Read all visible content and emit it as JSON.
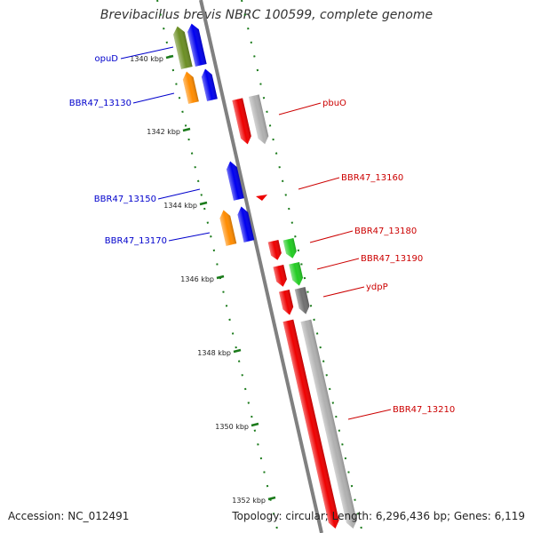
{
  "title": "Brevibacillus brevis NBRC 100599, complete genome",
  "footer": {
    "accession": "Accession: NC_012491",
    "stats": "Topology: circular; Length: 6,296,436 bp; Genes: 6,119"
  },
  "colors": {
    "backbone": "#808080",
    "tick": "#1a7a1a",
    "left_label": "#0000cc",
    "right_label": "#cc0000",
    "blue_gene": "#0000ee",
    "red_gene": "#ee0000",
    "olive_gene": "#6b8e23",
    "orange_gene": "#ff8c00",
    "green_gene": "#22cc22",
    "gray_gene": "#b0b0b0",
    "dark_gray_gene": "#707070"
  },
  "ticks": [
    "1340 kbp",
    "1342 kbp",
    "1344 kbp",
    "1346 kbp",
    "1348 kbp",
    "1350 kbp",
    "1352 kbp"
  ],
  "labels_left": [
    "opuD",
    "BBR47_13130",
    "BBR47_13150",
    "BBR47_13170"
  ],
  "labels_right": [
    "pbuO",
    "BBR47_13160",
    "BBR47_13180",
    "BBR47_13190",
    "ydpP",
    "BBR47_13210"
  ]
}
